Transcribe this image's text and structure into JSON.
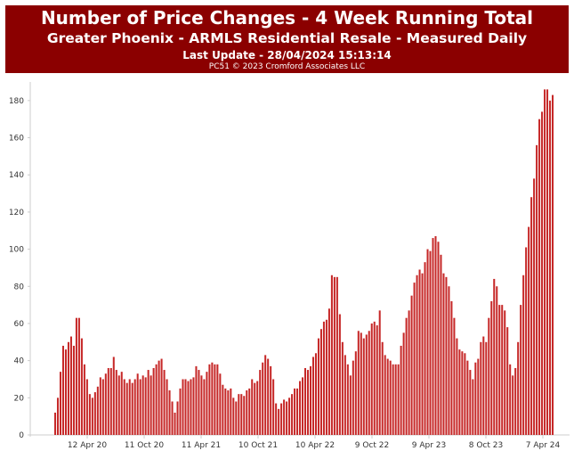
{
  "header": {
    "title": "Number of Price Changes - 4 Week Running Total",
    "subtitle": "Greater Phoenix - ARMLS Residential Resale - Measured Daily",
    "last_update": "Last Update - 28/04/2024 15:13:14",
    "copyright": "PC51 © 2023 Cromford Associates LLC"
  },
  "colors": {
    "header_bg": "#8b0000",
    "bar": "#c62828"
  },
  "chart_data": {
    "type": "bar",
    "title": "Number of Price Changes - 4 Week Running Total",
    "subtitle": "Greater Phoenix - ARMLS Residential Resale - Measured Daily",
    "ylim": [
      0,
      190
    ],
    "yticks": [
      0,
      20,
      40,
      60,
      80,
      100,
      120,
      140,
      160,
      180
    ],
    "grid": false,
    "x_tick_labels": [
      "12 Apr 20",
      "11 Oct 20",
      "11 Apr 21",
      "10 Oct 21",
      "10 Apr 22",
      "9 Oct 22",
      "9 Apr 23",
      "8 Oct 23",
      "7 Apr 24"
    ],
    "series": [
      {
        "values": [
          12,
          20,
          34,
          48,
          46,
          50,
          53,
          48,
          63,
          63,
          52,
          38,
          30,
          22,
          20,
          23,
          26,
          31,
          30,
          33,
          36,
          36,
          42,
          35,
          32,
          34,
          30,
          28,
          30,
          28,
          30,
          33,
          30,
          32,
          31,
          35,
          32,
          36,
          38,
          40,
          41,
          35,
          30,
          24,
          18,
          12,
          18,
          25,
          30,
          30,
          29,
          30,
          31,
          37,
          35,
          32,
          30,
          34,
          38,
          39,
          38,
          38,
          33,
          27,
          25,
          24,
          25,
          20,
          18,
          22,
          22,
          21,
          24,
          25,
          30,
          28,
          29,
          35,
          39,
          43,
          41,
          37,
          30,
          17,
          14,
          17,
          19,
          18,
          20,
          22,
          25,
          25,
          29,
          31,
          36,
          35,
          37,
          42,
          44,
          52,
          57,
          61,
          62,
          68,
          86,
          85,
          85,
          65,
          50,
          43,
          38,
          32,
          40,
          45,
          56,
          55,
          52,
          54,
          56,
          60,
          61,
          59,
          67,
          50,
          43,
          41,
          40,
          38,
          38,
          38,
          48,
          55,
          63,
          67,
          75,
          82,
          86,
          89,
          87,
          93,
          100,
          99,
          106,
          107,
          104,
          97,
          87,
          85,
          80,
          72,
          63,
          52,
          46,
          45,
          44,
          40,
          35,
          30,
          39,
          41,
          50,
          53,
          50,
          63,
          72,
          84,
          80,
          70,
          70,
          67,
          58,
          38,
          32,
          36,
          50,
          70,
          86,
          101,
          112,
          128,
          138,
          156,
          170,
          174,
          186,
          186,
          180,
          183
        ]
      }
    ]
  }
}
